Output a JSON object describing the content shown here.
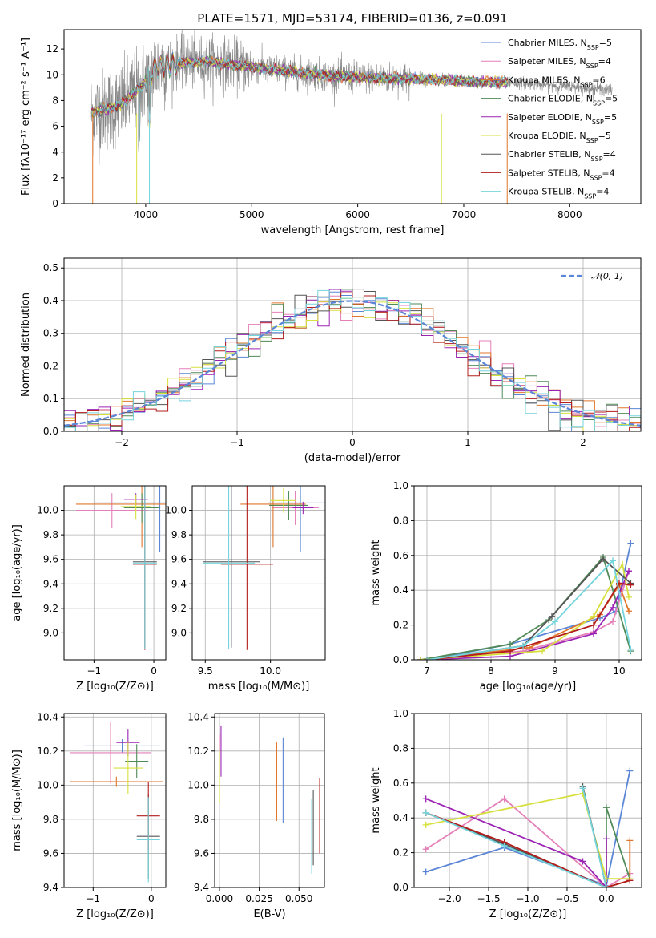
{
  "colors": {
    "Chabrier MILES": "#5b86d6",
    "Salpeter MILES": "#e57fb9",
    "Kroupa MILES": "#e0762a",
    "Chabrier ELODIE": "#4f8a57",
    "Salpeter ELODIE": "#9b23b4",
    "Kroupa ELODIE": "#d8e03e",
    "Chabrier STELIB": "#555555",
    "Salpeter STELIB": "#b31d1d",
    "Kroupa STELIB": "#74d4dc",
    "data": "#888888",
    "normal": "#5b86d6"
  },
  "chart_data": [
    {
      "id": "spectrum",
      "type": "line",
      "title": "PLATE=1571, MJD=53174, FIBERID=0136, z=0.091",
      "xlabel": "wavelength [Angstrom, rest frame]",
      "ylabel": "Flux [fλ10⁻¹⁷ erg cm⁻² s⁻¹ A⁻¹]",
      "xlim": [
        3230,
        8670
      ],
      "ylim": [
        0,
        13.5
      ],
      "xticks": [
        4000,
        5000,
        6000,
        7000,
        8000
      ],
      "yticks": [
        0,
        2,
        4,
        6,
        8,
        10,
        12
      ],
      "continuum": {
        "x": [
          3480,
          3600,
          3750,
          3850,
          3950,
          4100,
          4300,
          4600,
          5000,
          5500,
          6000,
          6500,
          7000,
          7500,
          8000,
          8400
        ],
        "y": [
          7.0,
          7.3,
          7.6,
          8.3,
          9.0,
          10.6,
          10.9,
          11.0,
          10.6,
          10.1,
          9.8,
          9.7,
          9.5,
          9.4,
          9.1,
          8.8
        ]
      },
      "legend": [
        {
          "name": "Chabrier MILES",
          "nssp": "5"
        },
        {
          "name": "Salpeter MILES",
          "nssp": "4"
        },
        {
          "name": "Kroupa MILES",
          "nssp": "6"
        },
        {
          "name": "Chabrier ELODIE",
          "nssp": "5"
        },
        {
          "name": "Salpeter ELODIE",
          "nssp": "5"
        },
        {
          "name": "Kroupa ELODIE",
          "nssp": "5"
        },
        {
          "name": "Chabrier STELIB",
          "nssp": "4"
        },
        {
          "name": "Salpeter STELIB",
          "nssp": "4"
        },
        {
          "name": "Kroupa STELIB",
          "nssp": "4"
        }
      ]
    },
    {
      "id": "residuals",
      "type": "bar",
      "xlabel": "(data-model)/error",
      "ylabel": "Normed distribution",
      "xlim": [
        -2.5,
        2.5
      ],
      "ylim": [
        0,
        0.53
      ],
      "xticks": [
        -2,
        -1,
        0,
        1,
        2
      ],
      "yticks": [
        0.0,
        0.1,
        0.2,
        0.3,
        0.4,
        0.5
      ],
      "legend": "𝒩(0, 1)",
      "bin_width": 0.1
    },
    {
      "id": "age_vs_Z",
      "type": "scatter",
      "xlabel": "Z [log₁₀(Z/Z⊙)]",
      "ylabel": "age  [log₁₀(age/yr)]",
      "xlim": [
        -1.5,
        0.2
      ],
      "ylim": [
        8.78,
        10.2
      ],
      "xticks": [
        -1,
        0
      ],
      "yticks": [
        9.0,
        9.2,
        9.4,
        9.6,
        9.8,
        10.0
      ],
      "points": [
        {
          "name": "Chabrier MILES",
          "x": 0.1,
          "y": 10.06,
          "xerr": 1.1,
          "yerr": 0.4
        },
        {
          "name": "Salpeter MILES",
          "x": -0.7,
          "y": 10.0,
          "xerr": 0.6,
          "yerr": 0.14
        },
        {
          "name": "Kroupa MILES",
          "x": -0.2,
          "y": 10.05,
          "xerr": 1.1,
          "yerr": 0.35
        },
        {
          "name": "Chabrier ELODIE",
          "x": -0.2,
          "y": 10.02,
          "xerr": 0.3,
          "yerr": 0.12
        },
        {
          "name": "Salpeter ELODIE",
          "x": -0.3,
          "y": 10.09,
          "xerr": 0.2,
          "yerr": 0.05
        },
        {
          "name": "Kroupa ELODIE",
          "x": -0.3,
          "y": 10.03,
          "xerr": 0.25,
          "yerr": 0.1
        },
        {
          "name": "Chabrier STELIB",
          "x": -0.15,
          "y": 9.58,
          "xerr": 0.2,
          "yerr": 0.7
        },
        {
          "name": "Salpeter STELIB",
          "x": -0.15,
          "y": 9.56,
          "xerr": 0.2,
          "yerr": 0.7
        },
        {
          "name": "Kroupa STELIB",
          "x": -0.15,
          "y": 9.57,
          "xerr": 0.2,
          "yerr": 0.7
        }
      ]
    },
    {
      "id": "age_vs_mass",
      "type": "scatter",
      "xlabel": "mass [log₁₀(M/M⊙)]",
      "xlim": [
        9.4,
        10.42
      ],
      "ylim": [
        8.78,
        10.2
      ],
      "xticks": [
        9.5,
        10.0
      ],
      "yticks": [
        9.0,
        9.2,
        9.4,
        9.6,
        9.8,
        10.0
      ],
      "points": [
        {
          "name": "Chabrier MILES",
          "x": 10.23,
          "y": 10.06,
          "xerr": 0.25,
          "yerr": 0.4
        },
        {
          "name": "Salpeter MILES",
          "x": 10.19,
          "y": 10.02,
          "xerr": 0.18,
          "yerr": 0.14
        },
        {
          "name": "Kroupa MILES",
          "x": 10.02,
          "y": 10.05,
          "xerr": 0.25,
          "yerr": 0.35
        },
        {
          "name": "Chabrier ELODIE",
          "x": 10.14,
          "y": 10.04,
          "xerr": 0.15,
          "yerr": 0.12
        },
        {
          "name": "Salpeter ELODIE",
          "x": 10.25,
          "y": 10.02,
          "xerr": 0.08,
          "yerr": 0.05
        },
        {
          "name": "Kroupa ELODIE",
          "x": 10.1,
          "y": 10.08,
          "xerr": 0.1,
          "yerr": 0.1
        },
        {
          "name": "Chabrier STELIB",
          "x": 9.7,
          "y": 9.58,
          "xerr": 0.22,
          "yerr": 0.7
        },
        {
          "name": "Salpeter STELIB",
          "x": 9.82,
          "y": 9.56,
          "xerr": 0.2,
          "yerr": 0.7
        },
        {
          "name": "Kroupa STELIB",
          "x": 9.68,
          "y": 9.57,
          "xerr": 0.2,
          "yerr": 0.7
        }
      ]
    },
    {
      "id": "weight_vs_age",
      "type": "line",
      "xlabel": "age  [log₁₀(age/yr)]",
      "ylabel": "mass weight",
      "xlim": [
        6.8,
        10.35
      ],
      "ylim": [
        0,
        1.0
      ],
      "xticks": [
        7,
        8,
        9,
        10
      ],
      "yticks": [
        0.0,
        0.2,
        0.4,
        0.6,
        0.8,
        1.0
      ],
      "series": [
        {
          "name": "Chabrier MILES",
          "x": [
            7.0,
            8.3,
            9.7,
            9.95,
            10.18
          ],
          "y": [
            0.0,
            0.09,
            0.24,
            0.28,
            0.67
          ]
        },
        {
          "name": "Salpeter MILES",
          "x": [
            7.0,
            8.5,
            9.6,
            9.9,
            10.15
          ],
          "y": [
            0.0,
            0.05,
            0.16,
            0.22,
            0.51
          ]
        },
        {
          "name": "Kroupa MILES",
          "x": [
            6.9,
            8.6,
            9.7,
            10.0,
            10.15
          ],
          "y": [
            0.0,
            0.07,
            0.26,
            0.43,
            0.28
          ]
        },
        {
          "name": "Chabrier ELODIE",
          "x": [
            6.9,
            8.3,
            8.9,
            9.75,
            10.18
          ],
          "y": [
            0.0,
            0.09,
            0.23,
            0.59,
            0.05
          ]
        },
        {
          "name": "Salpeter ELODIE",
          "x": [
            6.9,
            8.3,
            9.6,
            9.9,
            10.15
          ],
          "y": [
            0.0,
            0.02,
            0.15,
            0.3,
            0.51
          ]
        },
        {
          "name": "Kroupa ELODIE",
          "x": [
            6.9,
            8.8,
            9.6,
            10.05,
            10.15
          ],
          "y": [
            0.0,
            0.05,
            0.25,
            0.55,
            0.36
          ]
        },
        {
          "name": "Chabrier STELIB",
          "x": [
            7.0,
            8.5,
            8.95,
            9.75,
            10.18
          ],
          "y": [
            0.0,
            0.08,
            0.25,
            0.58,
            0.44
          ]
        },
        {
          "name": "Salpeter STELIB",
          "x": [
            7.0,
            8.3,
            9.6,
            10.0,
            10.18
          ],
          "y": [
            0.0,
            0.05,
            0.2,
            0.44,
            0.43
          ]
        },
        {
          "name": "Kroupa STELIB",
          "x": [
            7.0,
            8.5,
            9.0,
            9.9,
            10.18
          ],
          "y": [
            0.0,
            0.08,
            0.22,
            0.57,
            0.06
          ]
        }
      ]
    },
    {
      "id": "mass_vs_Z",
      "type": "scatter",
      "xlabel": "Z [log₁₀(Z/Z⊙)]",
      "ylabel": "mass [log₁₀(M/M⊙)]",
      "xlim": [
        -1.5,
        0.25
      ],
      "ylim": [
        9.4,
        10.42
      ],
      "xticks": [
        -1,
        0
      ],
      "yticks": [
        9.4,
        9.6,
        9.8,
        10.0,
        10.2,
        10.4
      ],
      "points": [
        {
          "name": "Chabrier MILES",
          "x": -0.5,
          "y": 10.23,
          "xerr": 0.65,
          "yerr": 0.04
        },
        {
          "name": "Salpeter MILES",
          "x": -0.7,
          "y": 10.19,
          "xerr": 0.7,
          "yerr": 0.18
        },
        {
          "name": "Kroupa MILES",
          "x": -0.6,
          "y": 10.02,
          "xerr": 0.8,
          "yerr": 0.03
        },
        {
          "name": "Chabrier ELODIE",
          "x": -0.25,
          "y": 10.14,
          "xerr": 0.2,
          "yerr": 0.1
        },
        {
          "name": "Salpeter ELODIE",
          "x": -0.4,
          "y": 10.25,
          "xerr": 0.2,
          "yerr": 0.08
        },
        {
          "name": "Kroupa ELODIE",
          "x": -0.4,
          "y": 10.1,
          "xerr": 0.25,
          "yerr": 0.15
        },
        {
          "name": "Chabrier STELIB",
          "x": -0.05,
          "y": 9.7,
          "xerr": 0.2,
          "yerr": 0.25
        },
        {
          "name": "Salpeter STELIB",
          "x": -0.05,
          "y": 9.82,
          "xerr": 0.2,
          "yerr": 0.2
        },
        {
          "name": "Kroupa STELIB",
          "x": -0.05,
          "y": 9.68,
          "xerr": 0.2,
          "yerr": 0.25
        }
      ]
    },
    {
      "id": "mass_vs_ebv",
      "type": "scatter",
      "xlabel": "E(B-V)",
      "xlim": [
        -0.003,
        0.066
      ],
      "ylim": [
        9.4,
        10.42
      ],
      "xticks": [
        0.0,
        0.025,
        0.05
      ],
      "xticklabels": [
        "0.000",
        "0.025",
        "0.050"
      ],
      "yticks": [
        9.4,
        9.6,
        9.8,
        10.0,
        10.2,
        10.4
      ],
      "points": [
        {
          "name": "Chabrier MILES",
          "x": 0.04,
          "y": 10.03,
          "xerr": 0,
          "yerr": 0.25
        },
        {
          "name": "Salpeter MILES",
          "x": 0.0,
          "y": 10.15,
          "xerr": 0,
          "yerr": 0.15
        },
        {
          "name": "Kroupa MILES",
          "x": 0.036,
          "y": 10.02,
          "xerr": 0,
          "yerr": 0.23
        },
        {
          "name": "Chabrier ELODIE",
          "x": 0.0,
          "y": 10.0,
          "xerr": 0,
          "yerr": 0.1
        },
        {
          "name": "Salpeter ELODIE",
          "x": 0.001,
          "y": 10.2,
          "xerr": 0,
          "yerr": 0.15
        },
        {
          "name": "Kroupa ELODIE",
          "x": 0.0,
          "y": 10.05,
          "xerr": 0,
          "yerr": 0.15
        },
        {
          "name": "Chabrier STELIB",
          "x": 0.059,
          "y": 9.75,
          "xerr": 0,
          "yerr": 0.22
        },
        {
          "name": "Salpeter STELIB",
          "x": 0.063,
          "y": 9.82,
          "xerr": 0,
          "yerr": 0.22
        },
        {
          "name": "Kroupa STELIB",
          "x": 0.058,
          "y": 9.7,
          "xerr": 0,
          "yerr": 0.22
        }
      ]
    },
    {
      "id": "weight_vs_Z",
      "type": "line",
      "xlabel": "Z [log₁₀(Z/Z⊙)]",
      "ylabel": "mass weight",
      "xlim": [
        -2.45,
        0.45
      ],
      "ylim": [
        0,
        1.0
      ],
      "xticks": [
        -2.0,
        -1.5,
        -1.0,
        -0.5,
        0.0
      ],
      "yticks": [
        0.0,
        0.2,
        0.4,
        0.6,
        0.8,
        1.0
      ],
      "series": [
        {
          "name": "Chabrier MILES",
          "x": [
            -2.3,
            -1.3,
            0.0,
            0.3
          ],
          "y": [
            0.09,
            0.23,
            0.01,
            0.67
          ]
        },
        {
          "name": "Salpeter MILES",
          "x": [
            -2.3,
            -1.3,
            0.0,
            0.3
          ],
          "y": [
            0.22,
            0.51,
            0.0,
            0.08
          ]
        },
        {
          "name": "Kroupa MILES",
          "x": [
            -2.3,
            0.0,
            0.3,
            0.3
          ],
          "y": [
            0.43,
            0.0,
            0.04,
            0.27
          ]
        },
        {
          "name": "Chabrier ELODIE",
          "x": [
            -2.3,
            0.0,
            0.0,
            0.3
          ],
          "y": [
            0.43,
            0.0,
            0.46,
            0.05
          ]
        },
        {
          "name": "Salpeter ELODIE",
          "x": [
            -2.3,
            -0.3,
            0.0,
            0.0
          ],
          "y": [
            0.51,
            0.15,
            0.0,
            0.28
          ]
        },
        {
          "name": "Kroupa ELODIE",
          "x": [
            -2.3,
            -0.3,
            0.0,
            0.3
          ],
          "y": [
            0.36,
            0.54,
            0.05,
            0.05
          ]
        },
        {
          "name": "Chabrier STELIB",
          "x": [
            -2.3,
            -1.3,
            0.0,
            -0.3
          ],
          "y": [
            0.43,
            0.25,
            0.0,
            0.58
          ]
        },
        {
          "name": "Salpeter STELIB",
          "x": [
            -2.3,
            -1.3,
            0.0,
            0.3
          ],
          "y": [
            0.43,
            0.26,
            0.0,
            0.04
          ]
        },
        {
          "name": "Kroupa STELIB",
          "x": [
            -2.3,
            -1.3,
            0.0,
            -0.3
          ],
          "y": [
            0.43,
            0.24,
            0.0,
            0.57
          ]
        }
      ]
    }
  ]
}
